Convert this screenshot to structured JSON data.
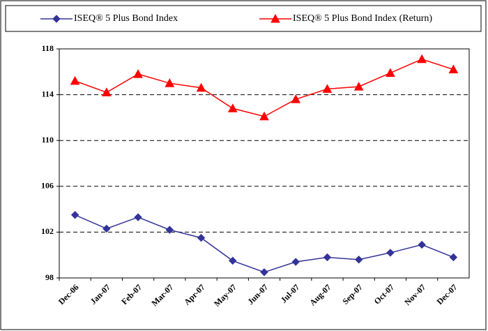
{
  "chart_data": {
    "type": "line",
    "categories": [
      "Dec-06",
      "Jan-07",
      "Feb-07",
      "Mar-07",
      "Apr-07",
      "May-07",
      "Jun-07",
      "Jul-07",
      "Aug-07",
      "Sep-07",
      "Oct-07",
      "Nov-07",
      "Dec-07"
    ],
    "series": [
      {
        "name": "ISEQ® 5 Plus Bond Index",
        "color": "#333399",
        "marker": "diamond",
        "values": [
          103.5,
          102.3,
          103.3,
          102.2,
          101.5,
          99.5,
          98.5,
          99.4,
          99.8,
          99.6,
          100.2,
          100.9,
          99.8
        ]
      },
      {
        "name": "ISEQ® 5 Plus Bond Index (Return)",
        "color": "#ff0000",
        "marker": "triangle",
        "values": [
          115.2,
          114.2,
          115.8,
          115.0,
          114.6,
          112.8,
          112.1,
          113.6,
          114.5,
          114.7,
          115.9,
          117.1,
          116.2
        ]
      }
    ],
    "ylim": [
      98,
      118
    ],
    "yticks": [
      98,
      102,
      106,
      110,
      114,
      118
    ],
    "grid": true,
    "legend": "top"
  }
}
